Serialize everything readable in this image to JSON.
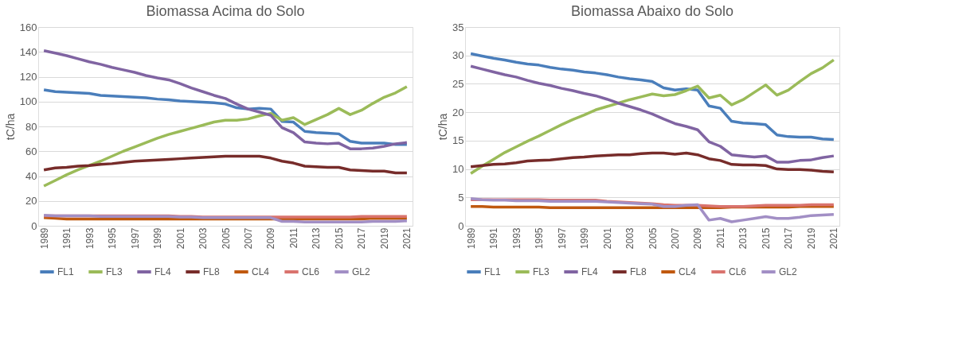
{
  "chart_data": [
    {
      "type": "line",
      "title": "Biomassa Acima do Solo",
      "ylabel": "tC/ha",
      "categories": [
        "1989",
        null,
        "1991",
        null,
        "1993",
        null,
        "1995",
        null,
        "1997",
        null,
        "1999",
        null,
        "2001",
        null,
        "2003",
        null,
        "2005",
        null,
        "2007",
        null,
        "2009",
        null,
        "2011",
        null,
        "2013",
        null,
        "2015",
        null,
        "2017",
        null,
        "2019",
        null,
        "2021"
      ],
      "ylim": [
        0,
        160
      ],
      "yticks": [
        0,
        20,
        40,
        60,
        80,
        100,
        120,
        140,
        160
      ],
      "grid": "y",
      "legend": "bottom",
      "marker": "none",
      "line_style": "solid",
      "series": [
        {
          "name": "FL1",
          "color": "#4a7ebb",
          "values": [
            109.5,
            108,
            107.5,
            107,
            106.5,
            105,
            104.5,
            104,
            103.5,
            103,
            102,
            101.5,
            100.5,
            100,
            99.5,
            99,
            98,
            95,
            94,
            94.5,
            94,
            84,
            83.5,
            76,
            75,
            74.5,
            74,
            68,
            66.5,
            66.5,
            66.5,
            65.5,
            65.5
          ]
        },
        {
          "name": "FL3",
          "color": "#9bbb59",
          "values": [
            32,
            36.5,
            41,
            45,
            48.5,
            52,
            56,
            60,
            63.5,
            67,
            70.5,
            73.5,
            76,
            78.5,
            81,
            83.5,
            85,
            85,
            86,
            88.5,
            90.5,
            85,
            87,
            81.5,
            85.5,
            89.5,
            94.5,
            89.5,
            93,
            98.5,
            103.5,
            107,
            112
          ]
        },
        {
          "name": "FL4",
          "color": "#8064a2",
          "values": [
            141,
            139,
            137,
            134.5,
            132,
            130,
            127.5,
            125.5,
            123.5,
            121,
            119,
            117.5,
            114.5,
            111,
            108,
            105,
            102.5,
            98,
            94,
            91.5,
            89,
            79,
            75,
            67.5,
            66.5,
            66,
            66.5,
            62,
            62,
            62.5,
            64,
            66,
            67
          ]
        },
        {
          "name": "FL8",
          "color": "#772c2a",
          "values": [
            45,
            46.5,
            47,
            48,
            48.5,
            49.5,
            50,
            51,
            52,
            52.5,
            53,
            53.5,
            54,
            54.5,
            55,
            55.5,
            56,
            56,
            56,
            56,
            54.5,
            52,
            50.5,
            48,
            47.5,
            47,
            47,
            45,
            44.5,
            44,
            44,
            42.5,
            42.5
          ]
        },
        {
          "name": "CL4",
          "color": "#c0590f",
          "values": [
            6.5,
            6,
            5.5,
            5.5,
            5.5,
            5.5,
            5.5,
            5.5,
            5.5,
            5.5,
            5.5,
            5.5,
            5.5,
            5.5,
            5.5,
            5.5,
            5.5,
            5.5,
            5.5,
            5.5,
            5.5,
            5.5,
            5.5,
            5.5,
            5.5,
            5.5,
            5.5,
            5.5,
            5.5,
            6,
            6,
            6,
            6
          ]
        },
        {
          "name": "CL6",
          "color": "#d9736e",
          "values": [
            8,
            8,
            8,
            8,
            8,
            8,
            8,
            8,
            8,
            8,
            8,
            8,
            7.5,
            7.5,
            7,
            7,
            7,
            7,
            7,
            7,
            7,
            7,
            7,
            7,
            7,
            7,
            7,
            7,
            7.5,
            7.5,
            7.5,
            7.5,
            7.5
          ]
        },
        {
          "name": "GL2",
          "color": "#a28fc5",
          "values": [
            8.5,
            8,
            8,
            8,
            8,
            7.5,
            7.5,
            7.5,
            7.5,
            7.5,
            7.5,
            7.5,
            7,
            7,
            6.5,
            6.5,
            6.5,
            6.5,
            6.5,
            6.5,
            6.5,
            3.5,
            3.5,
            3,
            3,
            3,
            3,
            3,
            3,
            3.5,
            3.5,
            3.5,
            4
          ]
        }
      ]
    },
    {
      "type": "line",
      "title": "Biomassa Abaixo do Solo",
      "ylabel": "tC/ha",
      "categories": [
        "1989",
        null,
        "1991",
        null,
        "1993",
        null,
        "1995",
        null,
        "1997",
        null,
        "1999",
        null,
        "2001",
        null,
        "2003",
        null,
        "2005",
        null,
        "2007",
        null,
        "2009",
        null,
        "2011",
        null,
        "2013",
        null,
        "2015",
        null,
        "2017",
        null,
        "2019",
        null,
        "2021"
      ],
      "ylim": [
        0,
        35
      ],
      "yticks": [
        0,
        5,
        10,
        15,
        20,
        25,
        30,
        35
      ],
      "grid": "y",
      "legend": "bottom",
      "marker": "none",
      "line_style": "solid",
      "series": [
        {
          "name": "FL1",
          "color": "#4a7ebb",
          "values": [
            30.3,
            29.9,
            29.5,
            29.2,
            28.8,
            28.5,
            28.3,
            27.9,
            27.6,
            27.4,
            27.1,
            26.9,
            26.6,
            26.2,
            25.9,
            25.7,
            25.4,
            24.3,
            23.9,
            24.1,
            23.9,
            21.1,
            20.7,
            18.4,
            18.1,
            18,
            17.8,
            16,
            15.7,
            15.6,
            15.6,
            15.3,
            15.2
          ]
        },
        {
          "name": "FL3",
          "color": "#9bbb59",
          "values": [
            9.2,
            10.5,
            11.7,
            12.9,
            13.9,
            14.9,
            15.8,
            16.8,
            17.8,
            18.7,
            19.5,
            20.4,
            21,
            21.6,
            22.2,
            22.7,
            23.2,
            22.9,
            23.1,
            23.8,
            24.6,
            22.5,
            23,
            21.3,
            22.2,
            23.5,
            24.8,
            23,
            23.9,
            25.4,
            26.8,
            27.8,
            29.2
          ]
        },
        {
          "name": "FL4",
          "color": "#8064a2",
          "values": [
            28.1,
            27.6,
            27.1,
            26.6,
            26.2,
            25.6,
            25.1,
            24.7,
            24.2,
            23.8,
            23.3,
            22.9,
            22.3,
            21.6,
            21,
            20.4,
            19.7,
            18.8,
            18,
            17.5,
            16.9,
            14.8,
            14,
            12.5,
            12.3,
            12.1,
            12.3,
            11.2,
            11.2,
            11.5,
            11.6,
            12,
            12.3
          ]
        },
        {
          "name": "FL8",
          "color": "#772c2a",
          "values": [
            10.4,
            10.6,
            10.8,
            10.9,
            11.1,
            11.4,
            11.5,
            11.6,
            11.8,
            12,
            12.1,
            12.3,
            12.4,
            12.5,
            12.5,
            12.7,
            12.8,
            12.8,
            12.6,
            12.8,
            12.5,
            11.8,
            11.5,
            10.8,
            10.7,
            10.7,
            10.6,
            10,
            9.9,
            9.9,
            9.8,
            9.6,
            9.5
          ]
        },
        {
          "name": "CL4",
          "color": "#c0590f",
          "values": [
            3.4,
            3.4,
            3.3,
            3.3,
            3.3,
            3.3,
            3.3,
            3.2,
            3.2,
            3.2,
            3.2,
            3.2,
            3.2,
            3.2,
            3.2,
            3.2,
            3.2,
            3.2,
            3.2,
            3.2,
            3.2,
            3.2,
            3.2,
            3.3,
            3.3,
            3.3,
            3.3,
            3.3,
            3.3,
            3.4,
            3.4,
            3.4,
            3.4
          ]
        },
        {
          "name": "CL6",
          "color": "#d9736e",
          "values": [
            4.6,
            4.6,
            4.6,
            4.6,
            4.6,
            4.6,
            4.6,
            4.5,
            4.5,
            4.5,
            4.5,
            4.5,
            4.3,
            4.2,
            4.1,
            4,
            3.9,
            3.7,
            3.6,
            3.6,
            3.6,
            3.5,
            3.4,
            3.4,
            3.4,
            3.5,
            3.6,
            3.6,
            3.6,
            3.6,
            3.7,
            3.7,
            3.7
          ]
        },
        {
          "name": "GL2",
          "color": "#a28fc5",
          "values": [
            4.8,
            4.6,
            4.5,
            4.5,
            4.4,
            4.4,
            4.4,
            4.3,
            4.3,
            4.3,
            4.3,
            4.3,
            4.2,
            4.1,
            4,
            3.9,
            3.8,
            3.4,
            3.4,
            3.6,
            3.7,
            1,
            1.3,
            0.7,
            1,
            1.3,
            1.6,
            1.3,
            1.3,
            1.5,
            1.8,
            1.9,
            2
          ]
        }
      ]
    }
  ]
}
